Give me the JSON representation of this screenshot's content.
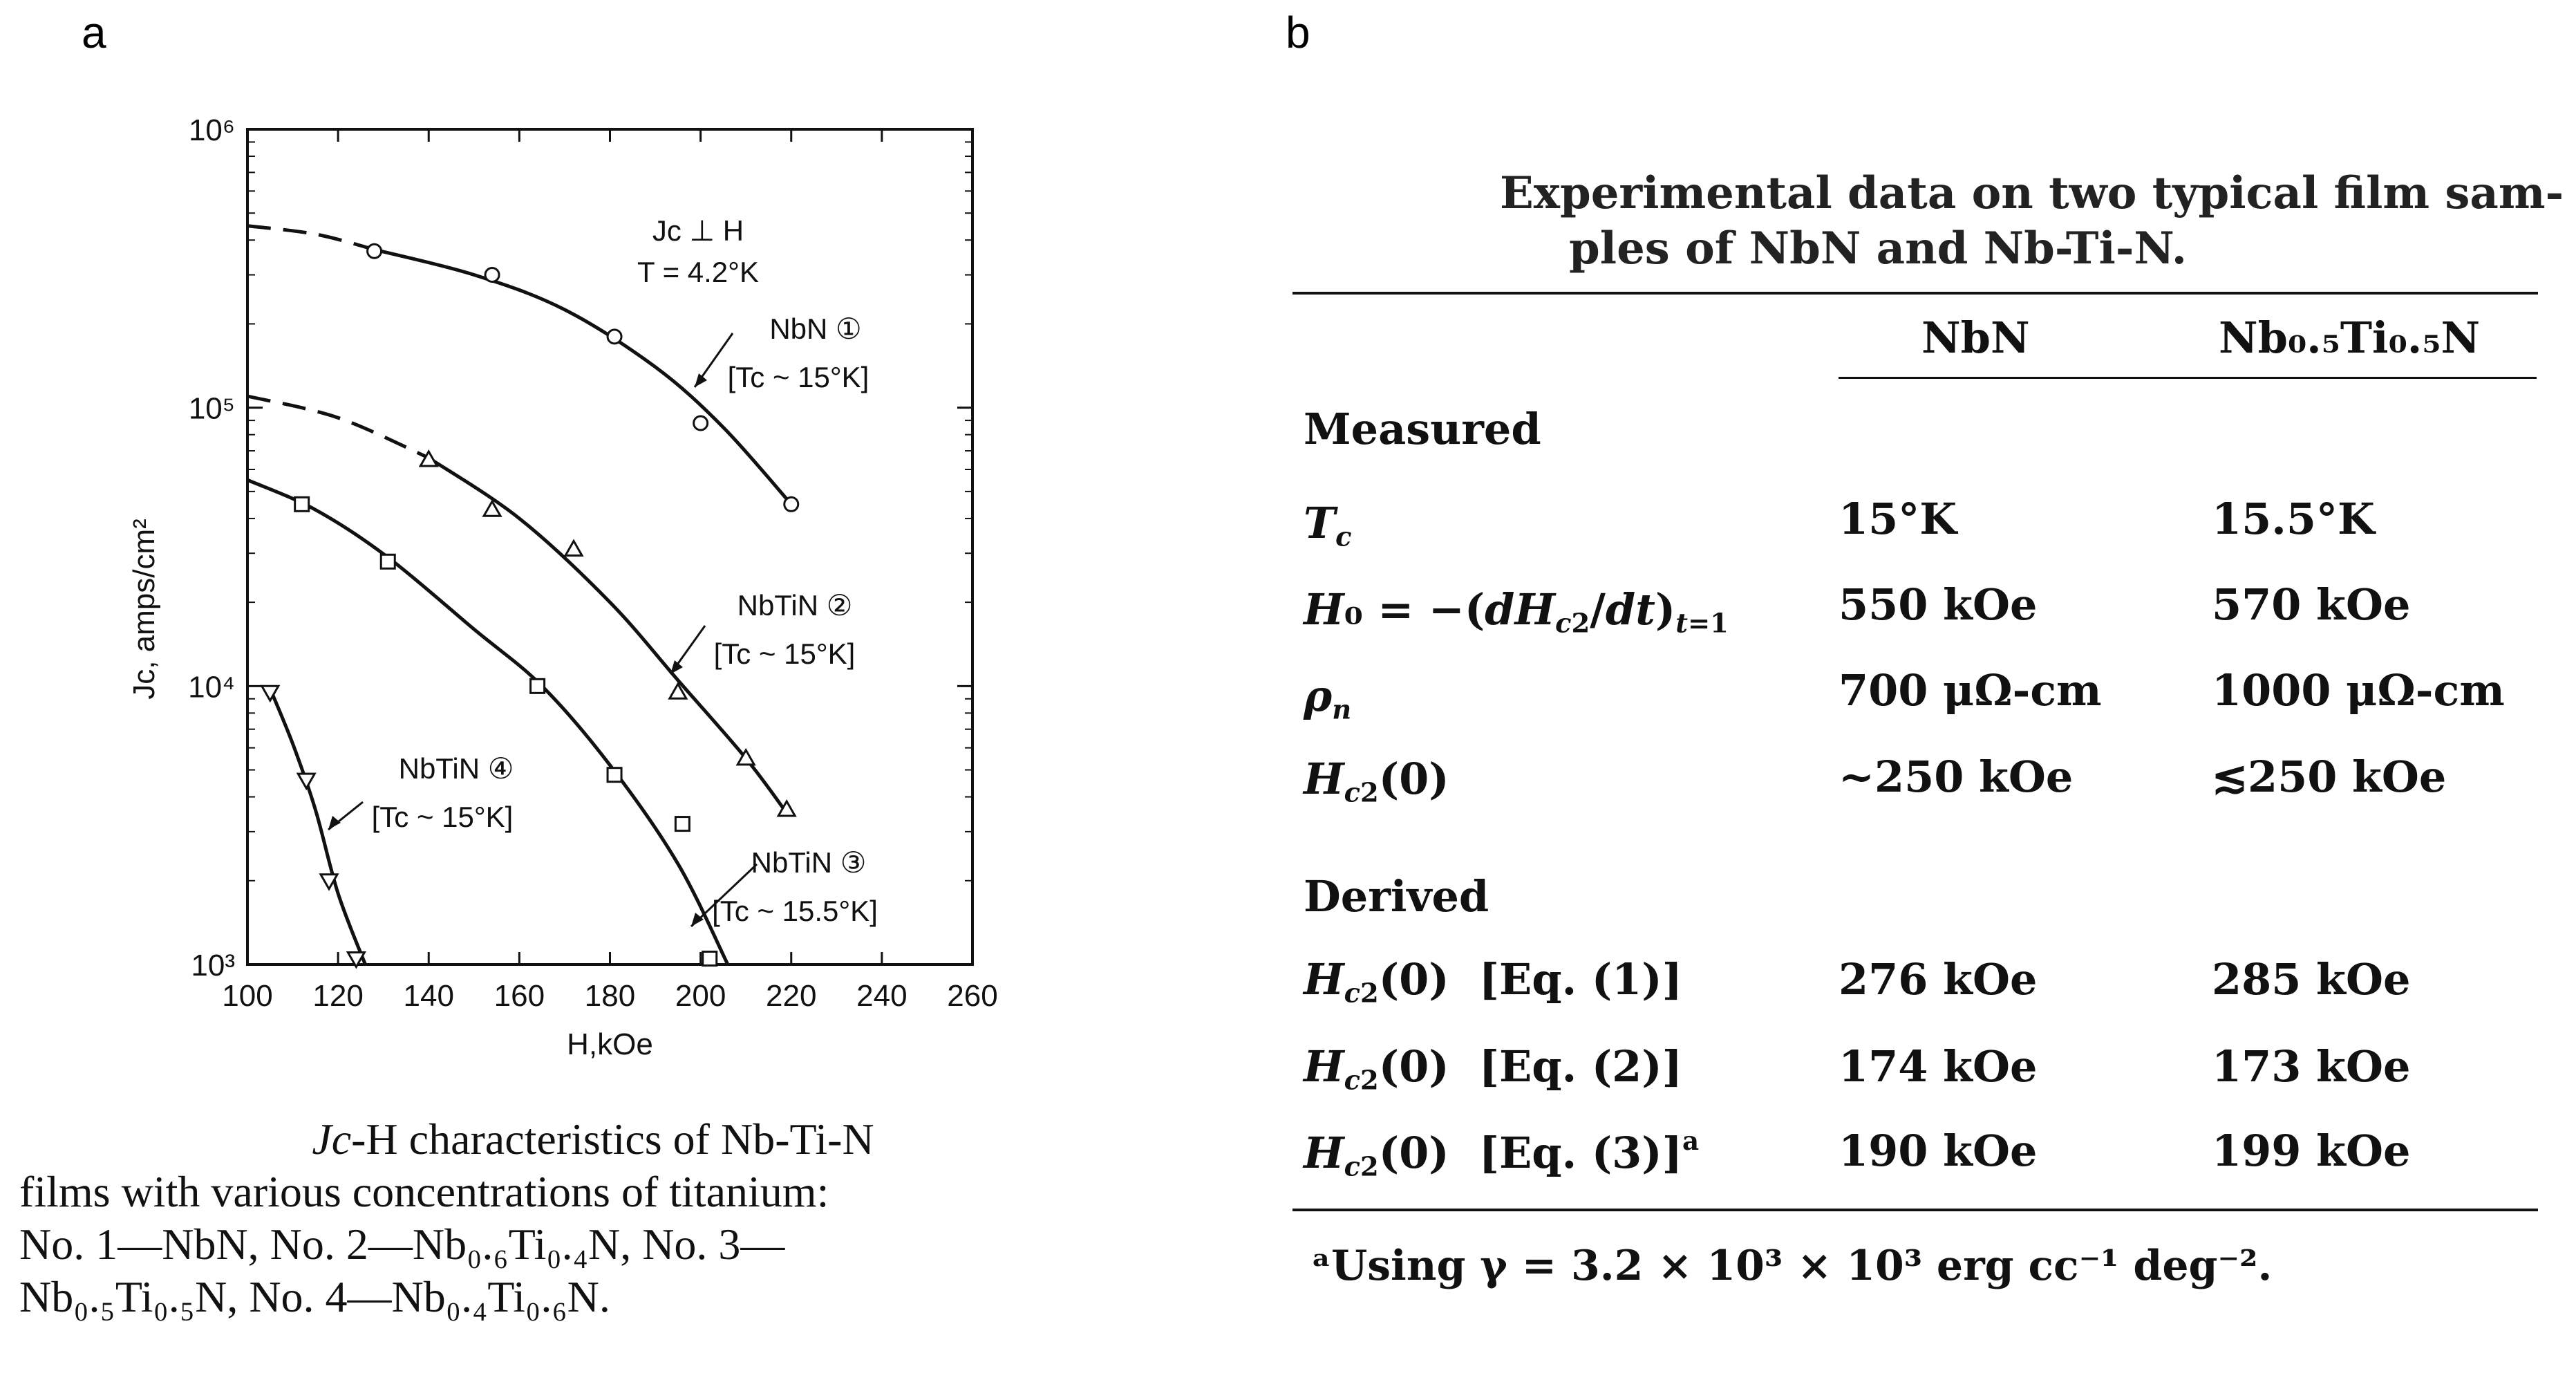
{
  "panel_a": {
    "letter": "a",
    "chart_data": {
      "type": "line",
      "title": "",
      "xlabel": "H,kOe",
      "ylabel": "Jc, amps/cm²",
      "xlim": [
        100,
        260
      ],
      "ylim": [
        1000,
        1000000
      ],
      "y_scale": "log",
      "x_ticks": [
        "100",
        "120",
        "140",
        "160",
        "180",
        "200",
        "220",
        "240",
        "260"
      ],
      "y_ticks": [
        "10³",
        "10⁴",
        "10⁵",
        "10⁶"
      ],
      "conditions": [
        "Jc ⊥ H",
        "T = 4.2°K"
      ],
      "series": [
        {
          "name": "NbN ①",
          "label_tc": "[Tc ~ 15°K]",
          "marker": "circle",
          "points": [
            [
              128,
              365000
            ],
            [
              154,
              300000
            ],
            [
              181,
              180000
            ],
            [
              200,
              88000
            ],
            [
              220,
              45000
            ]
          ],
          "curve": [
            [
              128,
              370000
            ],
            [
              150,
              300000
            ],
            [
              170,
              225000
            ],
            [
              190,
              140000
            ],
            [
              205,
              85000
            ],
            [
              220,
              45000
            ]
          ],
          "extrapolation": [
            [
              100,
              450000
            ],
            [
              115,
              420000
            ],
            [
              128,
              370000
            ]
          ]
        },
        {
          "name": "NbTiN ②",
          "label_tc": "[Tc ~ 15°K]",
          "marker": "triangle",
          "points": [
            [
              140,
              65000
            ],
            [
              154,
              43000
            ],
            [
              172,
              31000
            ],
            [
              195,
              9500
            ],
            [
              210,
              5500
            ],
            [
              219,
              3600
            ]
          ],
          "curve": [
            [
              140,
              66000
            ],
            [
              160,
              40000
            ],
            [
              180,
              20000
            ],
            [
              195,
              10500
            ],
            [
              210,
              5500
            ],
            [
              219,
              3500
            ]
          ],
          "extrapolation": [
            [
              100,
              110000
            ],
            [
              120,
              92000
            ],
            [
              140,
              66000
            ]
          ]
        },
        {
          "name": "NbTiN ③",
          "label_tc": "[Tc ~ 15.5°K]",
          "marker": "square",
          "points": [
            [
              112,
              45000
            ],
            [
              131,
              28000
            ],
            [
              164,
              10000
            ],
            [
              181,
              4800
            ],
            [
              196,
              3200
            ],
            [
              202,
              1050
            ]
          ],
          "curve": [
            [
              100,
              55000
            ],
            [
              115,
              43000
            ],
            [
              131,
              29000
            ],
            [
              150,
              16000
            ],
            [
              165,
              10000
            ],
            [
              180,
              5200
            ],
            [
              195,
              2300
            ],
            [
              206,
              1000
            ]
          ],
          "extrapolation": []
        },
        {
          "name": "NbTiN ④",
          "label_tc": "[Tc ~ 15°K]",
          "marker": "triangle-down",
          "points": [
            [
              105,
              9500
            ],
            [
              113,
              4600
            ],
            [
              118,
              2000
            ],
            [
              124,
              1050
            ]
          ],
          "curve": [
            [
              105,
              9800
            ],
            [
              110,
              6200
            ],
            [
              115,
              3600
            ],
            [
              120,
              1800
            ],
            [
              126,
              1000
            ]
          ],
          "extrapolation": []
        }
      ]
    },
    "caption": {
      "line1_italic": "Jc",
      "line1_rest": "-H characteristics of Nb-Ti-N",
      "line2": "films with various concentrations of titanium:",
      "line3": "No. 1—NbN, No. 2—Nb₀.₆Ti₀.₄N, No. 3—",
      "line4": "Nb₀.₅Ti₀.₅N, No. 4—Nb₀.₄Ti₀.₆N."
    }
  },
  "panel_b": {
    "letter": "b",
    "title_line1": "Experimental data on two typical film sam-",
    "title_line2": "ples of NbN and Nb-Ti-N.",
    "columns": [
      "NbN",
      "Nb₀.₅Ti₀.₅N"
    ],
    "section_measured": "Measured",
    "section_derived": "Derived",
    "rows_measured": [
      {
        "label": "Tc",
        "nbn": "15°K",
        "nbti": "15.5°K"
      },
      {
        "label": "H₀ = −(dHc2/dt)t=1",
        "nbn": "550 kOe",
        "nbti": "570 kOe"
      },
      {
        "label": "ρn",
        "nbn": "700 μΩ-cm",
        "nbti": "1000 μΩ-cm"
      },
      {
        "label": "Hc2(0)",
        "nbn": "~250 kOe",
        "nbti": "≲250 kOe"
      }
    ],
    "rows_derived": [
      {
        "label": "Hc2(0) [Eq. (1)]",
        "nbn": "276 kOe",
        "nbti": "285 kOe"
      },
      {
        "label": "Hc2(0) [Eq. (2)]",
        "nbn": "174 kOe",
        "nbti": "173 kOe"
      },
      {
        "label": "Hc2(0) [Eq. (3)]ᵃ",
        "nbn": "190 kOe",
        "nbti": "199 kOe"
      }
    ],
    "footnote": "ᵃUsing γ = 3.2 × 10³ × 10³ erg cc⁻¹ deg⁻²."
  }
}
